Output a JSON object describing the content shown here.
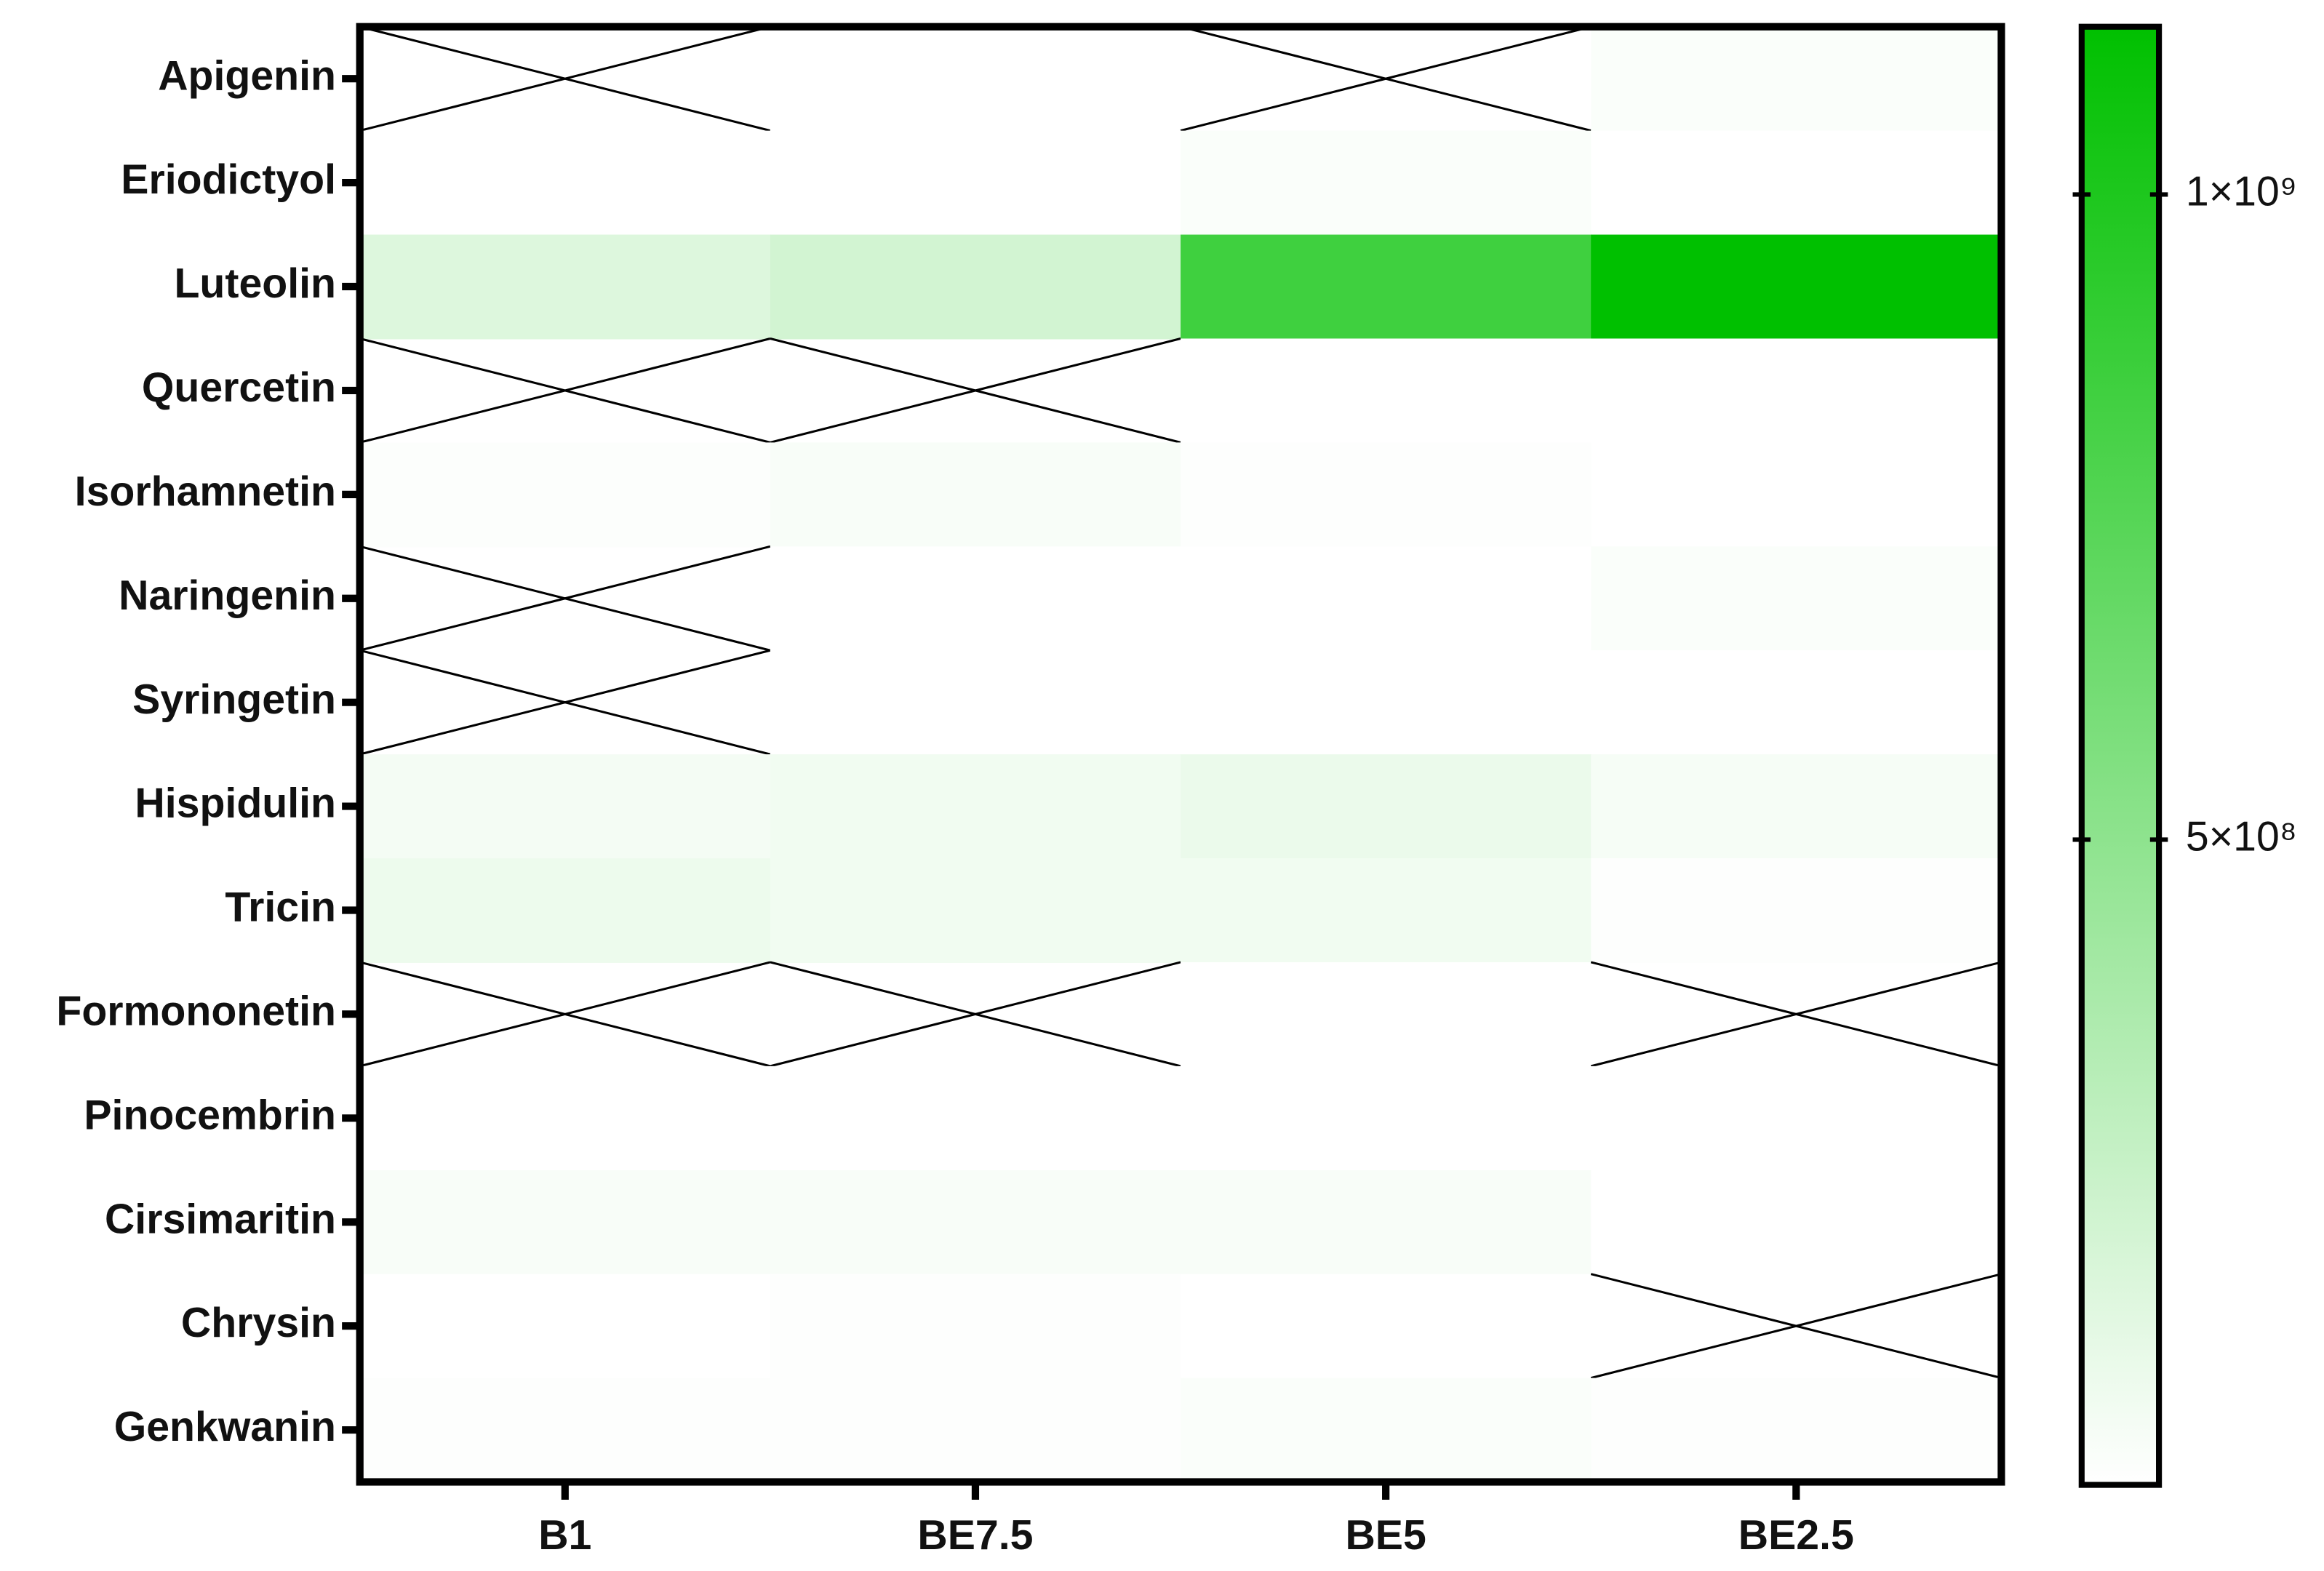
{
  "chart_data": {
    "type": "heatmap",
    "rows": [
      "Apigenin",
      "Eriodictyol",
      "Luteolin",
      "Quercetin",
      "Isorhamnetin",
      "Naringenin",
      "Syringetin",
      "Hispidulin",
      "Tricin",
      "Formononetin",
      "Pinocembrin",
      "Cirsimaritin",
      "Chrysin",
      "Genkwanin"
    ],
    "columns": [
      "B1",
      "BE7.5",
      "BE5",
      "BE2.5"
    ],
    "z": [
      [
        null,
        0,
        null,
        20000000
      ],
      [
        0,
        0,
        20000000,
        0
      ],
      [
        150000000,
        200000000,
        850000000,
        1130000000
      ],
      [
        null,
        null,
        0,
        0
      ],
      [
        15000000,
        30000000,
        10000000,
        0
      ],
      [
        null,
        0,
        0,
        20000000
      ],
      [
        null,
        0,
        0,
        0
      ],
      [
        50000000,
        60000000,
        90000000,
        40000000
      ],
      [
        80000000,
        60000000,
        60000000,
        10000000
      ],
      [
        null,
        null,
        0,
        null
      ],
      [
        0,
        0,
        0,
        0
      ],
      [
        30000000,
        30000000,
        30000000,
        0
      ],
      [
        0,
        10000000,
        0,
        null
      ],
      [
        10000000,
        10000000,
        20000000,
        10000000
      ]
    ],
    "zlim": [
      0,
      1130000000
    ],
    "zticks": [
      {
        "value": 500000000,
        "label": "5×10⁸"
      },
      {
        "value": 1000000000,
        "label": "1×10⁹"
      }
    ],
    "colormap": [
      "#ffffff",
      "#00c000"
    ]
  }
}
